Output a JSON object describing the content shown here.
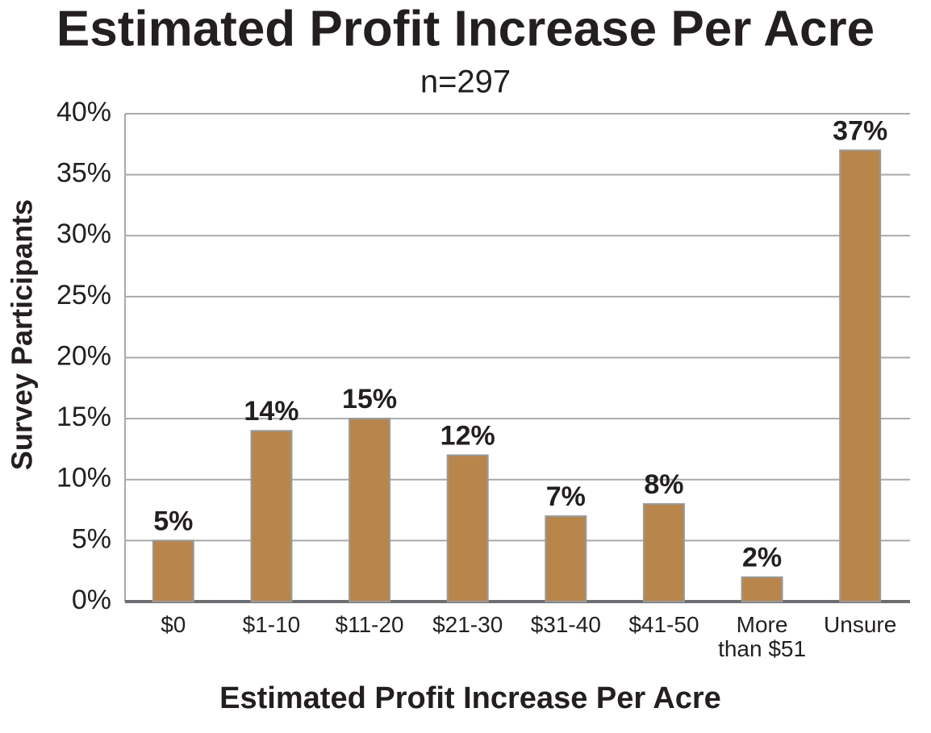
{
  "chart_data": {
    "type": "bar",
    "title": "Estimated Profit Increase Per Acre",
    "subtitle": "n=297",
    "x_label": "Estimated Profit Increase Per Acre",
    "y_label": "Survey Participants",
    "categories": [
      "$0",
      "$1-10",
      "$11-20",
      "$21-30",
      "$31-40",
      "$41-50",
      "More than $51",
      "Unsure"
    ],
    "values": [
      5,
      14,
      15,
      12,
      7,
      8,
      2,
      37
    ],
    "value_labels": [
      "5%",
      "14%",
      "15%",
      "12%",
      "7%",
      "8%",
      "2%",
      "37%"
    ],
    "color": "#b8864a",
    "ylim": [
      0,
      40
    ],
    "yticks": [
      {
        "value": 0,
        "label": "0%"
      },
      {
        "value": 5,
        "label": "5%"
      },
      {
        "value": 10,
        "label": "10%"
      },
      {
        "value": 15,
        "label": "15%"
      },
      {
        "value": 20,
        "label": "20%"
      },
      {
        "value": 25,
        "label": "25%"
      },
      {
        "value": 30,
        "label": "30%"
      },
      {
        "value": 35,
        "label": "35%"
      },
      {
        "value": 40,
        "label": "40%"
      }
    ],
    "grid": true
  }
}
